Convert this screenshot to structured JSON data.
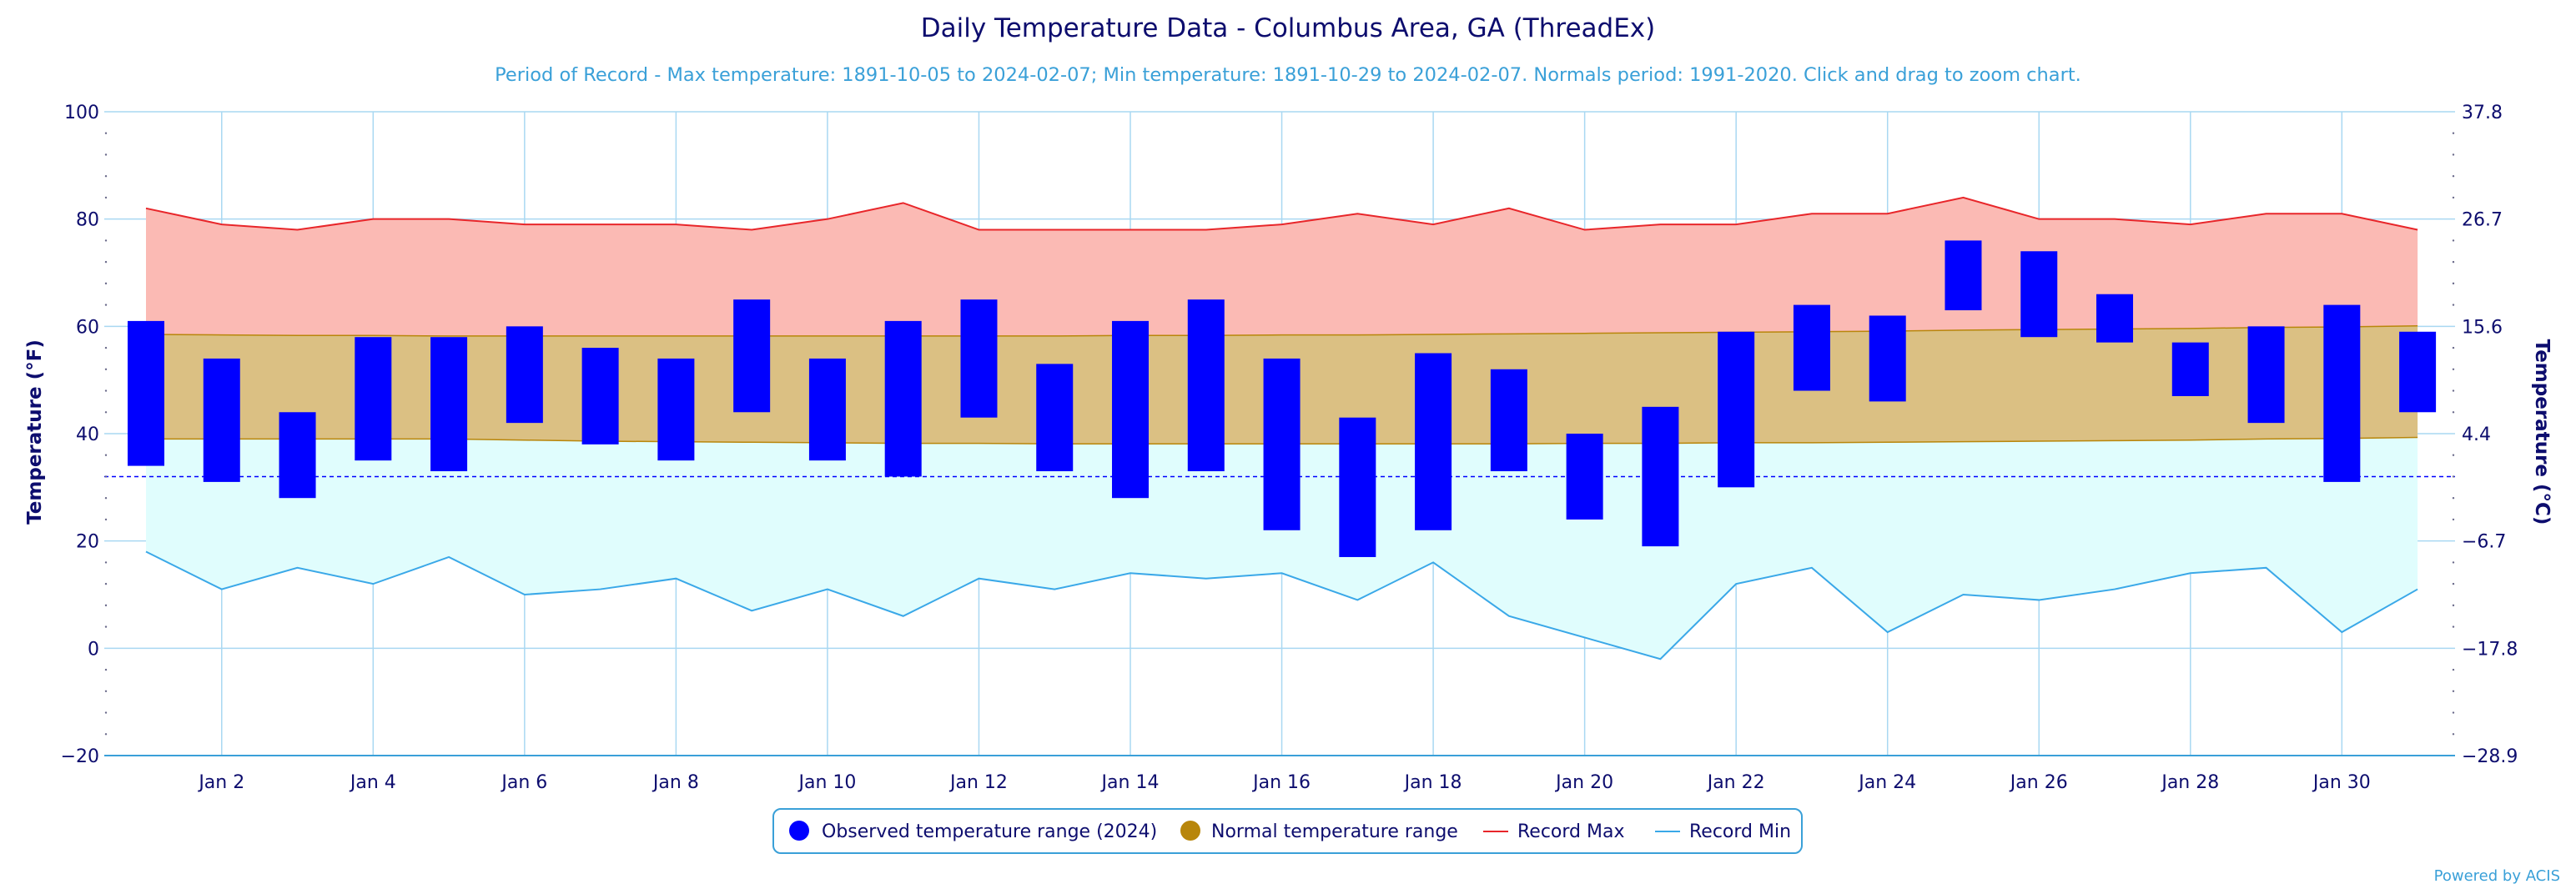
{
  "chart_data": {
    "type": "bar",
    "title": "Daily Temperature Data - Columbus Area, GA (ThreadEx)",
    "subtitle": "Period of Record - Max temperature: 1891-10-05 to 2024-02-07; Min temperature: 1891-10-29 to 2024-02-07. Normals period: 1991-2020. Click and drag to zoom chart.",
    "ylabel_left": "Temperature (°F)",
    "ylabel_right": "Temperature (°C)",
    "ylim": [
      -20,
      100
    ],
    "y_ticks_f": [
      "100",
      "80",
      "60",
      "40",
      "20",
      "0",
      "−20"
    ],
    "y_ticks_c": [
      "37.8",
      "26.7",
      "15.6",
      "4.4",
      "−6.7",
      "−17.8",
      "−28.9"
    ],
    "x_days": [
      1,
      2,
      3,
      4,
      5,
      6,
      7,
      8,
      9,
      10,
      11,
      12,
      13,
      14,
      15,
      16,
      17,
      18,
      19,
      20,
      21,
      22,
      23,
      24,
      25,
      26,
      27,
      28,
      29,
      30,
      31
    ],
    "x_tick_labels": [
      "Jan 2",
      "Jan 4",
      "Jan 6",
      "Jan 8",
      "Jan 10",
      "Jan 12",
      "Jan 14",
      "Jan 16",
      "Jan 18",
      "Jan 20",
      "Jan 22",
      "Jan 24",
      "Jan 26",
      "Jan 28",
      "Jan 30"
    ],
    "x_tick_days": [
      2,
      4,
      6,
      8,
      10,
      12,
      14,
      16,
      18,
      20,
      22,
      24,
      26,
      28,
      30
    ],
    "freezing_line_f": 32,
    "series": [
      {
        "name": "Observed temperature range (2024)",
        "color": "#0000ff",
        "low": [
          34,
          31,
          28,
          35,
          33,
          42,
          38,
          35,
          44,
          35,
          32,
          43,
          33,
          28,
          33,
          22,
          17,
          22,
          33,
          24,
          19,
          30,
          48,
          46,
          63,
          58,
          57,
          47,
          42,
          31,
          44
        ],
        "high": [
          61,
          54,
          44,
          58,
          58,
          60,
          56,
          54,
          65,
          54,
          61,
          65,
          53,
          61,
          65,
          54,
          43,
          55,
          52,
          40,
          45,
          59,
          64,
          62,
          76,
          74,
          66,
          57,
          60,
          64,
          59
        ]
      },
      {
        "name": "Normal temperature range",
        "color": "#b8860b",
        "low": [
          39,
          39,
          39,
          39,
          39,
          38.8,
          38.6,
          38.5,
          38.4,
          38.3,
          38.2,
          38.2,
          38.1,
          38.1,
          38.1,
          38.1,
          38.1,
          38.1,
          38.1,
          38.2,
          38.2,
          38.3,
          38.3,
          38.4,
          38.5,
          38.6,
          38.7,
          38.8,
          39,
          39.1,
          39.3
        ],
        "high": [
          58.5,
          58.4,
          58.3,
          58.3,
          58.2,
          58.2,
          58.2,
          58.2,
          58.2,
          58.2,
          58.2,
          58.2,
          58.2,
          58.3,
          58.3,
          58.4,
          58.4,
          58.5,
          58.6,
          58.7,
          58.8,
          58.9,
          59,
          59.1,
          59.3,
          59.4,
          59.5,
          59.6,
          59.8,
          59.9,
          60.1
        ]
      },
      {
        "name": "Record Max",
        "color": "#e8262a",
        "values": [
          82,
          79,
          78,
          80,
          80,
          79,
          79,
          79,
          78,
          80,
          83,
          78,
          78,
          78,
          78,
          79,
          81,
          79,
          82,
          78,
          79,
          79,
          81,
          81,
          84,
          80,
          80,
          79,
          81,
          81,
          78
        ]
      },
      {
        "name": "Record Min",
        "color": "#3aa8e8",
        "values": [
          18,
          11,
          15,
          12,
          17,
          10,
          11,
          13,
          7,
          11,
          6,
          13,
          11,
          14,
          13,
          14,
          9,
          16,
          6,
          2,
          -2,
          12,
          15,
          3,
          10,
          9,
          11,
          14,
          15,
          3,
          11
        ]
      }
    ],
    "legend_position": "bottom-center",
    "credit": "Powered by ACIS"
  }
}
